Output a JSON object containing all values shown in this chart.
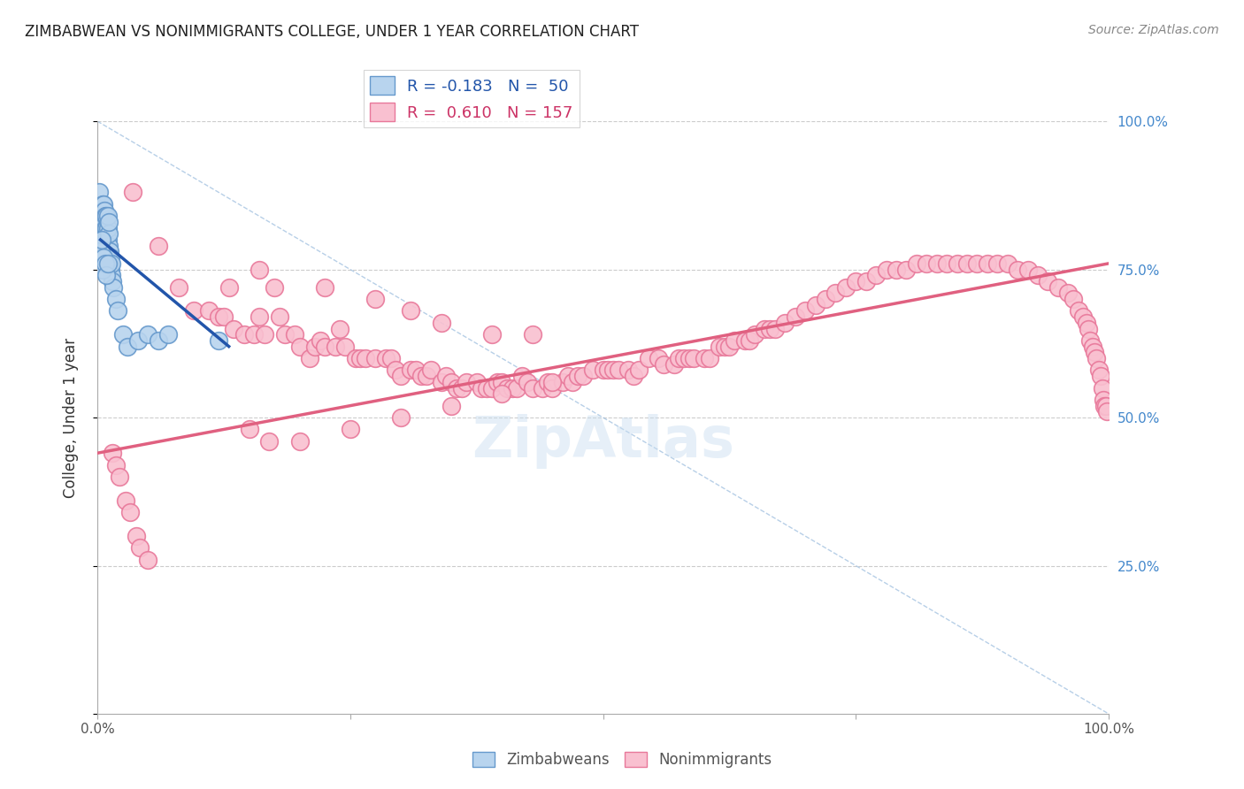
{
  "title": "ZIMBABWEAN VS NONIMMIGRANTS COLLEGE, UNDER 1 YEAR CORRELATION CHART",
  "source": "Source: ZipAtlas.com",
  "ylabel": "College, Under 1 year",
  "x_min": 0.0,
  "x_max": 1.0,
  "y_min": 0.0,
  "y_max": 1.0,
  "legend_entry_blue": "R = -0.183   N =  50",
  "legend_entry_pink": "R =  0.610   N = 157",
  "watermark": "ZipAtlas",
  "blue_scatter_x": [
    0.002,
    0.003,
    0.004,
    0.005,
    0.005,
    0.006,
    0.006,
    0.006,
    0.007,
    0.007,
    0.007,
    0.008,
    0.008,
    0.008,
    0.009,
    0.009,
    0.009,
    0.009,
    0.01,
    0.01,
    0.01,
    0.01,
    0.011,
    0.011,
    0.011,
    0.011,
    0.012,
    0.012,
    0.013,
    0.013,
    0.014,
    0.014,
    0.015,
    0.016,
    0.018,
    0.02,
    0.025,
    0.03,
    0.04,
    0.05,
    0.06,
    0.07,
    0.003,
    0.004,
    0.005,
    0.006,
    0.008,
    0.009,
    0.01,
    0.12
  ],
  "blue_scatter_y": [
    0.88,
    0.85,
    0.84,
    0.86,
    0.83,
    0.82,
    0.84,
    0.86,
    0.81,
    0.83,
    0.85,
    0.8,
    0.82,
    0.84,
    0.79,
    0.81,
    0.82,
    0.84,
    0.78,
    0.8,
    0.82,
    0.84,
    0.77,
    0.79,
    0.81,
    0.83,
    0.76,
    0.78,
    0.75,
    0.77,
    0.74,
    0.76,
    0.73,
    0.72,
    0.7,
    0.68,
    0.64,
    0.62,
    0.63,
    0.64,
    0.63,
    0.64,
    0.78,
    0.8,
    0.75,
    0.77,
    0.76,
    0.74,
    0.76,
    0.63
  ],
  "pink_scatter_x": [
    0.035,
    0.06,
    0.08,
    0.095,
    0.11,
    0.12,
    0.125,
    0.13,
    0.135,
    0.145,
    0.155,
    0.16,
    0.165,
    0.175,
    0.18,
    0.185,
    0.195,
    0.2,
    0.21,
    0.215,
    0.22,
    0.225,
    0.235,
    0.24,
    0.245,
    0.255,
    0.26,
    0.265,
    0.275,
    0.285,
    0.29,
    0.295,
    0.3,
    0.31,
    0.315,
    0.32,
    0.325,
    0.33,
    0.34,
    0.345,
    0.35,
    0.355,
    0.36,
    0.365,
    0.375,
    0.38,
    0.385,
    0.39,
    0.395,
    0.4,
    0.405,
    0.41,
    0.415,
    0.42,
    0.425,
    0.43,
    0.44,
    0.445,
    0.45,
    0.46,
    0.465,
    0.47,
    0.475,
    0.48,
    0.49,
    0.5,
    0.505,
    0.51,
    0.515,
    0.525,
    0.53,
    0.535,
    0.545,
    0.555,
    0.56,
    0.57,
    0.575,
    0.58,
    0.585,
    0.59,
    0.6,
    0.605,
    0.615,
    0.62,
    0.625,
    0.63,
    0.64,
    0.645,
    0.65,
    0.66,
    0.665,
    0.67,
    0.68,
    0.69,
    0.7,
    0.71,
    0.72,
    0.73,
    0.74,
    0.75,
    0.76,
    0.77,
    0.78,
    0.79,
    0.8,
    0.81,
    0.82,
    0.83,
    0.84,
    0.85,
    0.86,
    0.87,
    0.88,
    0.89,
    0.9,
    0.91,
    0.92,
    0.93,
    0.94,
    0.95,
    0.96,
    0.965,
    0.97,
    0.975,
    0.978,
    0.98,
    0.982,
    0.984,
    0.986,
    0.988,
    0.99,
    0.992,
    0.994,
    0.995,
    0.996,
    0.997,
    0.998,
    0.16,
    0.225,
    0.275,
    0.31,
    0.34,
    0.39,
    0.43,
    0.015,
    0.018,
    0.022,
    0.028,
    0.032,
    0.038,
    0.042,
    0.05,
    0.15,
    0.17,
    0.2,
    0.25,
    0.3,
    0.35,
    0.4,
    0.45
  ],
  "pink_scatter_y": [
    0.88,
    0.79,
    0.72,
    0.68,
    0.68,
    0.67,
    0.67,
    0.72,
    0.65,
    0.64,
    0.64,
    0.67,
    0.64,
    0.72,
    0.67,
    0.64,
    0.64,
    0.62,
    0.6,
    0.62,
    0.63,
    0.62,
    0.62,
    0.65,
    0.62,
    0.6,
    0.6,
    0.6,
    0.6,
    0.6,
    0.6,
    0.58,
    0.57,
    0.58,
    0.58,
    0.57,
    0.57,
    0.58,
    0.56,
    0.57,
    0.56,
    0.55,
    0.55,
    0.56,
    0.56,
    0.55,
    0.55,
    0.55,
    0.56,
    0.56,
    0.55,
    0.55,
    0.55,
    0.57,
    0.56,
    0.55,
    0.55,
    0.56,
    0.55,
    0.56,
    0.57,
    0.56,
    0.57,
    0.57,
    0.58,
    0.58,
    0.58,
    0.58,
    0.58,
    0.58,
    0.57,
    0.58,
    0.6,
    0.6,
    0.59,
    0.59,
    0.6,
    0.6,
    0.6,
    0.6,
    0.6,
    0.6,
    0.62,
    0.62,
    0.62,
    0.63,
    0.63,
    0.63,
    0.64,
    0.65,
    0.65,
    0.65,
    0.66,
    0.67,
    0.68,
    0.69,
    0.7,
    0.71,
    0.72,
    0.73,
    0.73,
    0.74,
    0.75,
    0.75,
    0.75,
    0.76,
    0.76,
    0.76,
    0.76,
    0.76,
    0.76,
    0.76,
    0.76,
    0.76,
    0.76,
    0.75,
    0.75,
    0.74,
    0.73,
    0.72,
    0.71,
    0.7,
    0.68,
    0.67,
    0.66,
    0.65,
    0.63,
    0.62,
    0.61,
    0.6,
    0.58,
    0.57,
    0.55,
    0.53,
    0.52,
    0.52,
    0.51,
    0.75,
    0.72,
    0.7,
    0.68,
    0.66,
    0.64,
    0.64,
    0.44,
    0.42,
    0.4,
    0.36,
    0.34,
    0.3,
    0.28,
    0.26,
    0.48,
    0.46,
    0.46,
    0.48,
    0.5,
    0.52,
    0.54,
    0.56
  ],
  "blue_line_x": [
    0.003,
    0.13
  ],
  "blue_line_y_start": 0.8,
  "blue_line_y_end": 0.62,
  "pink_line_x": [
    0.0,
    1.0
  ],
  "pink_line_y_start": 0.44,
  "pink_line_y_end": 0.76,
  "dash_line_x": [
    0.0,
    1.0
  ],
  "dash_line_y": [
    1.0,
    0.0
  ]
}
